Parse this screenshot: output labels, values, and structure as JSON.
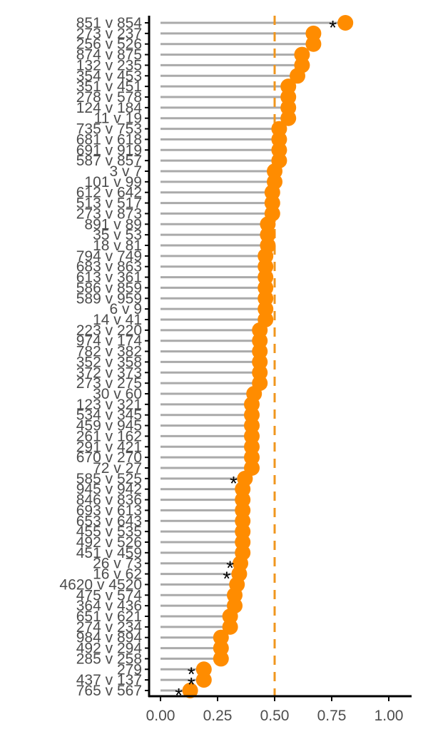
{
  "chart_data": {
    "type": "scatter",
    "subtype": "lollipop",
    "title": "",
    "xlabel": "",
    "ylabel": "",
    "xlim": [
      0,
      1.1
    ],
    "xticks": [
      0,
      0.25,
      0.5,
      0.75,
      1.0
    ],
    "xtick_labels": [
      "0.00",
      "0.25",
      "0.50",
      "0.75",
      "1.00"
    ],
    "reference_line": 0.5,
    "colors": {
      "point": "#FF8C00",
      "stem": "#AAAAAA",
      "reference": "#F0961E",
      "axis": "#000000",
      "text": "#4D4D4D"
    },
    "grid": false,
    "legend": "none",
    "star_marker": "*",
    "categories": [
      "765 v 567",
      "437 v 137",
      "279",
      "285 v 258",
      "492 v 294",
      "984 v 894",
      "274 v 234",
      "651 v 621",
      "364 v 436",
      "475 v 574",
      "4620 v 4520",
      "16 v 62",
      "26 v 73",
      "451 v 459",
      "492 v 526",
      "455 v 535",
      "653 v 643",
      "693 v 613",
      "846 v 836",
      "945 v 942",
      "585 v 525",
      "72 v 27",
      "670 v 270",
      "291 v 421",
      "261 v 162",
      "459 v 945",
      "534 v 345",
      "123 v 321",
      "30 v 60",
      "273 v 275",
      "372 v 373",
      "352 v 358",
      "782 v 382",
      "974 v 174",
      "223 v 220",
      "14 v 41",
      "6 v 9",
      "589 v 959",
      "586 v 859",
      "613 v 361",
      "683 v 863",
      "794 v 749",
      "18 v 81",
      "35 v 53",
      "891 v 89",
      "273 v 873",
      "513 v 517",
      "612 v 642",
      "101 v 99",
      "3 v 7",
      "587 v 857",
      "691 v 919",
      "681 v 618",
      "735 v 753",
      "11 v 19",
      "124 v 184",
      "278 v 578",
      "351 v 451",
      "354 v 453",
      "132 v 235",
      "874 v 875",
      "256 v 526",
      "273 v 237",
      "851 v 854"
    ],
    "values": [
      0.13,
      0.19,
      0.19,
      0.265,
      0.265,
      0.265,
      0.305,
      0.305,
      0.325,
      0.325,
      0.335,
      0.345,
      0.35,
      0.36,
      0.36,
      0.36,
      0.36,
      0.36,
      0.36,
      0.36,
      0.37,
      0.4,
      0.4,
      0.4,
      0.4,
      0.4,
      0.4,
      0.4,
      0.41,
      0.435,
      0.435,
      0.435,
      0.435,
      0.435,
      0.435,
      0.46,
      0.46,
      0.46,
      0.46,
      0.46,
      0.46,
      0.46,
      0.47,
      0.47,
      0.47,
      0.49,
      0.49,
      0.49,
      0.5,
      0.5,
      0.52,
      0.52,
      0.52,
      0.52,
      0.56,
      0.56,
      0.56,
      0.56,
      0.6,
      0.62,
      0.62,
      0.67,
      0.67,
      0.81
    ],
    "starred": [
      {
        "category": "765 v 567",
        "x": 0.08
      },
      {
        "category": "437 v 137",
        "x": 0.135
      },
      {
        "category": "279",
        "x": 0.135
      },
      {
        "category": "16 v 62",
        "x": 0.29
      },
      {
        "category": "26 v 73",
        "x": 0.305
      },
      {
        "category": "585 v 525",
        "x": 0.32
      },
      {
        "category": "851 v 854",
        "x": 0.755
      }
    ]
  }
}
